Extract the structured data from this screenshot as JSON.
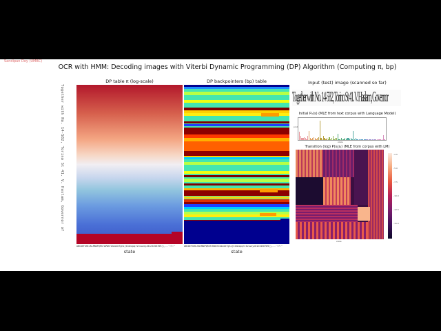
{
  "header": {
    "credit": "Sandipan Dey (UMBC)",
    "title": "OCR with HMM: Decoding images with Viterbi Dynamic Programming (DP) Algorithm (Computing π, bp)"
  },
  "panels": {
    "dp_pi": {
      "title": "DP table π (log-scale)",
      "side_text": "Together with No. 14-582, Torino St 41. V. Haslam, Governor of",
      "xlabel": "state",
      "xticks": "ABCDEFGHIJKLMNOPQRSTUVWXYZabcdefghijklmnopqrstuvwxyz0123456789(),.-'!?:\""
    },
    "dp_bp": {
      "title": "DP backpointers (bp) table",
      "xlabel": "state",
      "xticks": "ABCDEFGHIJKLMNOPQRSTUVWXYZabcdefghijklmnopqrstuvwxyz0123456789(),.-'!?:\""
    },
    "input_image": {
      "title": "Input (test) image (scanned so far)",
      "text": "Together with No. 14-582, Torino St 41. V. Haslam, Governor"
    },
    "initial": {
      "title": "Initial P₀(s) (MLE from text corpus with Language Model)",
      "xlabel": "state",
      "ylabel": "prob"
    },
    "transition": {
      "title": "Transition (log) P(sᵢ|sⱼ) (MLE from corpus with LM)",
      "xlabel": "state",
      "colorbar_ticks": [
        "-2.5",
        "-5.0",
        "-7.5",
        "-10.0",
        "-12.5",
        "-15.0"
      ]
    }
  },
  "chart_data": [
    {
      "type": "heatmap",
      "title": "DP table π (log-scale)",
      "xlabel": "state",
      "ylabel": "",
      "colormap": "coolwarm",
      "description": "Rows show vertical gradient from red (top) through white to blue; bottom ~7% rows dark red"
    },
    {
      "type": "heatmap",
      "title": "DP backpointers (bp) table",
      "xlabel": "state",
      "colormap": "jet",
      "description": "Horizontal bands of cyan, yellow-green, orange, dark red and blue; bottom ~15% rows dark blue"
    },
    {
      "type": "bar",
      "title": "Initial P₀(s) (MLE from text corpus with Language Model)",
      "xlabel": "state",
      "ylabel": "prob",
      "categories_count": 72,
      "values": [
        0.04,
        0.02,
        0.01,
        0.01,
        0.015,
        0.01,
        0.005,
        0.02,
        0.045,
        0.01,
        0.005,
        0.01,
        0.015,
        0.01,
        0.005,
        0.01,
        0.015,
        0.095,
        0.01,
        0.005,
        0.02,
        0.01,
        0.005,
        0.01,
        0.005,
        0.015,
        0.005,
        0.01,
        0.02,
        0.005,
        0.01,
        0.01,
        0.03,
        0.005,
        0.005,
        0.01,
        0.005,
        0.005,
        0.01,
        0.005,
        0.01,
        0.01,
        0.005,
        0.01,
        0.005,
        0.045,
        0.005,
        0.01,
        0.005,
        0.005,
        0.005,
        0.005,
        0.005,
        0.002,
        0.002,
        0.002,
        0.002,
        0.002,
        0.002,
        0.002,
        0.002,
        0.002,
        0.002,
        0.005,
        0.002,
        0.002,
        0.002,
        0.002,
        0.002,
        0.002,
        0.025,
        0.002
      ],
      "ylim": [
        0,
        0.1
      ]
    },
    {
      "type": "heatmap",
      "title": "Transition (log) P(sᵢ|sⱼ) (MLE from corpus with LM)",
      "xlabel": "state",
      "colormap": "magma",
      "colorbar_range": [
        -15.0,
        -2.5
      ]
    }
  ]
}
